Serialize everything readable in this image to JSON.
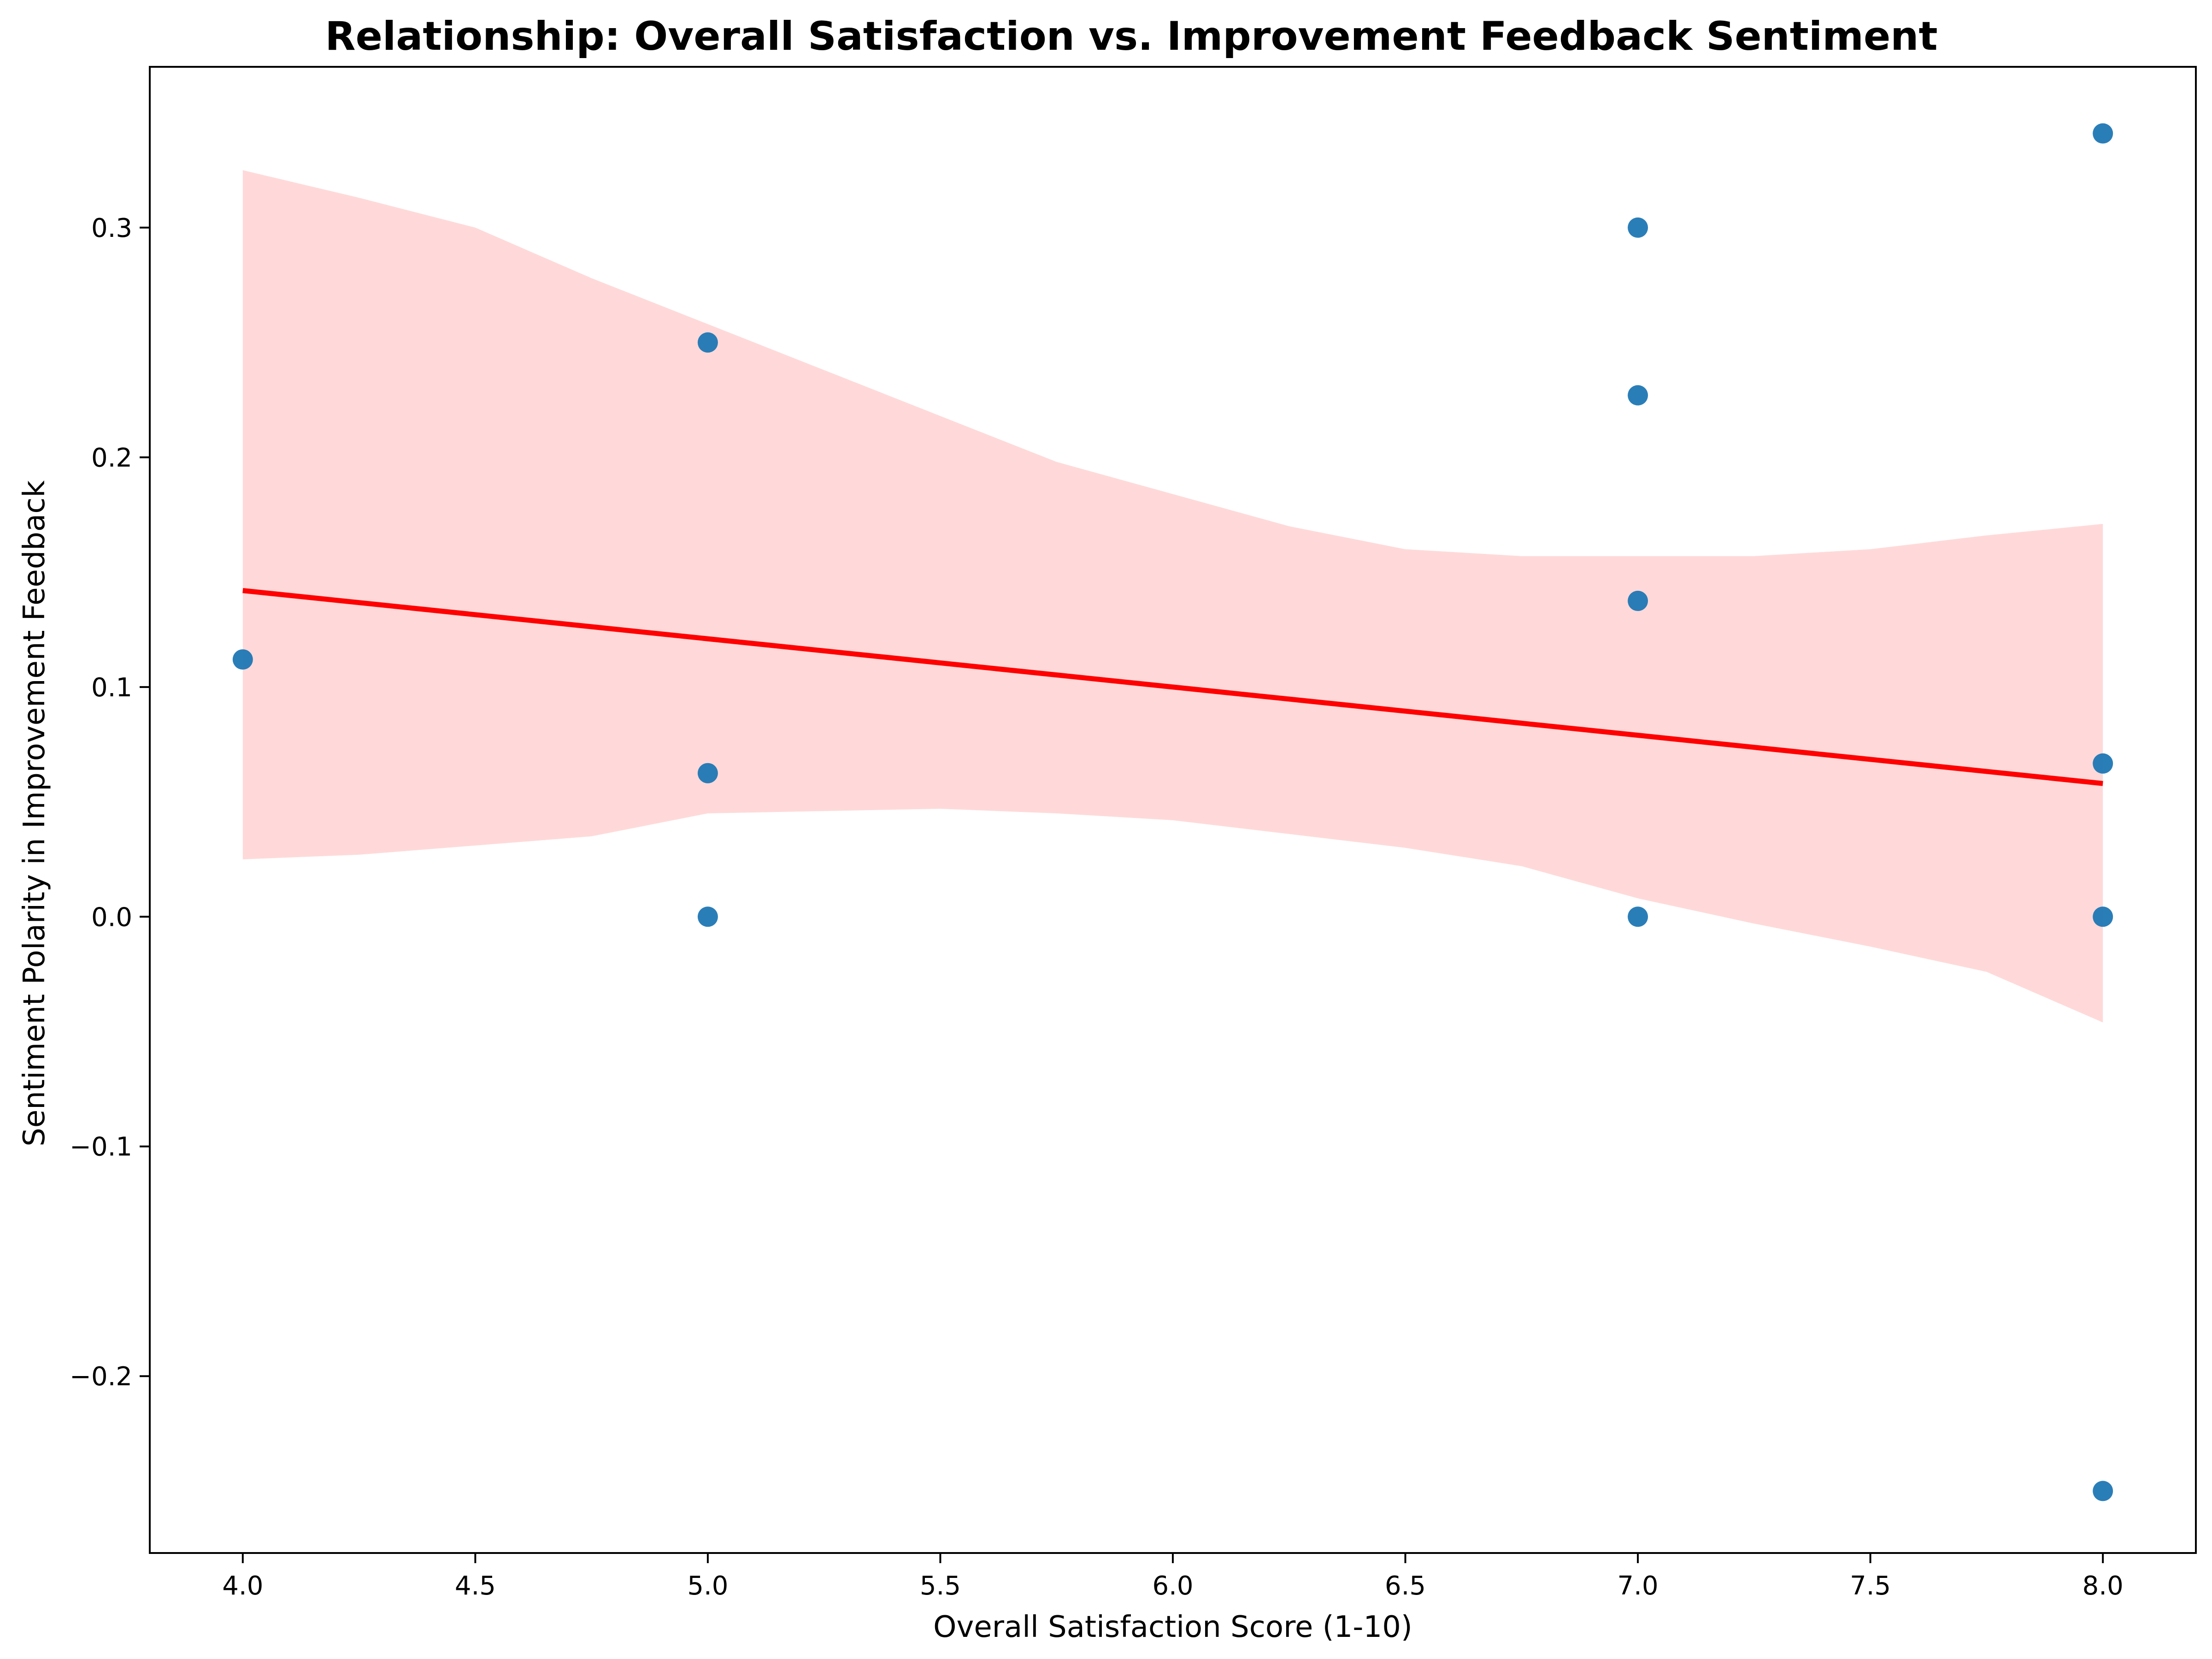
{
  "chart_data": {
    "type": "scatter",
    "title": "Relationship: Overall Satisfaction vs. Improvement Feedback Sentiment",
    "xlabel": "Overall Satisfaction Score (1-10)",
    "ylabel": "Sentiment Polarity in Improvement Feedback",
    "xlim": [
      3.8,
      8.2
    ],
    "ylim": [
      -0.277,
      0.37
    ],
    "xticks": [
      4.0,
      4.5,
      5.0,
      5.5,
      6.0,
      6.5,
      7.0,
      7.5,
      8.0
    ],
    "xtick_labels": [
      "4.0",
      "4.5",
      "5.0",
      "5.5",
      "6.0",
      "6.5",
      "7.0",
      "7.5",
      "8.0"
    ],
    "yticks": [
      -0.2,
      -0.1,
      0.0,
      0.1,
      0.2,
      0.3
    ],
    "ytick_labels": [
      "−0.2",
      "−0.1",
      "0.0",
      "0.1",
      "0.2",
      "0.3"
    ],
    "grid": false,
    "points": [
      {
        "x": 4.0,
        "y": 0.112
      },
      {
        "x": 5.0,
        "y": 0.25
      },
      {
        "x": 5.0,
        "y": 0.0625
      },
      {
        "x": 5.0,
        "y": 0.0
      },
      {
        "x": 7.0,
        "y": 0.3
      },
      {
        "x": 7.0,
        "y": 0.227
      },
      {
        "x": 7.0,
        "y": 0.1375
      },
      {
        "x": 7.0,
        "y": 0.0
      },
      {
        "x": 8.0,
        "y": 0.341
      },
      {
        "x": 8.0,
        "y": 0.0667
      },
      {
        "x": 8.0,
        "y": 0.0
      },
      {
        "x": 8.0,
        "y": -0.25
      }
    ],
    "regression_line": {
      "x": [
        4.0,
        8.0
      ],
      "y": [
        0.142,
        0.058
      ]
    },
    "confidence_band": {
      "x": [
        4.0,
        4.25,
        4.5,
        4.75,
        5.0,
        5.25,
        5.5,
        5.75,
        6.0,
        6.25,
        6.5,
        6.75,
        7.0,
        7.25,
        7.5,
        7.75,
        8.0
      ],
      "upper": [
        0.325,
        0.313,
        0.3,
        0.278,
        0.258,
        0.238,
        0.218,
        0.198,
        0.184,
        0.17,
        0.16,
        0.157,
        0.157,
        0.157,
        0.16,
        0.166,
        0.171
      ],
      "lower": [
        0.025,
        0.027,
        0.031,
        0.035,
        0.045,
        0.046,
        0.047,
        0.045,
        0.042,
        0.036,
        0.03,
        0.022,
        0.008,
        -0.003,
        -0.013,
        -0.024,
        -0.046
      ]
    },
    "colors": {
      "points": "#1f77b4",
      "line": "#ff0000",
      "band": "#ffd9d9"
    }
  }
}
